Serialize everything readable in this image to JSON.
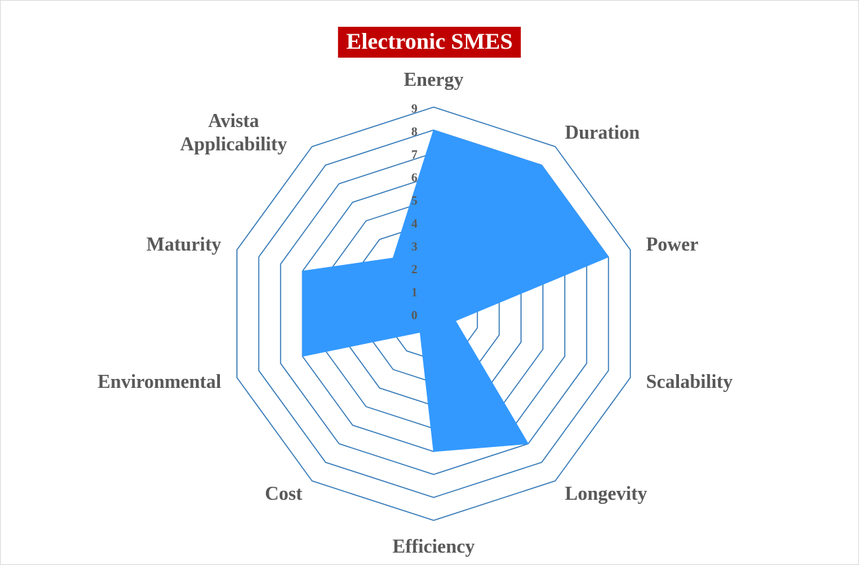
{
  "chart_data": {
    "type": "radar",
    "title": "Electronic SMES",
    "categories": [
      "Energy",
      "Duration",
      "Power",
      "Scalability",
      "Longevity",
      "Efficiency",
      "Cost",
      "Environmental",
      "Maturity",
      "Avista Applicability"
    ],
    "values": [
      8,
      8,
      8,
      1,
      7,
      6,
      1,
      6,
      6,
      3
    ],
    "color": "#3399ff",
    "grid_color": "#2e75b6",
    "ylim": [
      0,
      9
    ],
    "yticks": [
      0,
      1,
      2,
      3,
      4,
      5,
      6,
      7,
      8,
      9
    ],
    "grid": true
  }
}
